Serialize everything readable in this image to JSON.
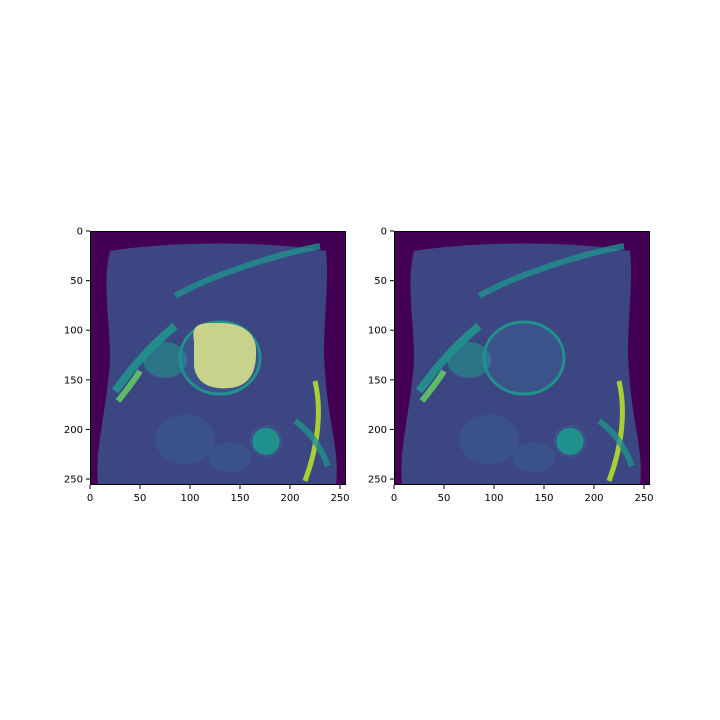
{
  "figure": {
    "panels": [
      {
        "id": "left",
        "overlay": true
      },
      {
        "id": "right",
        "overlay": false
      }
    ],
    "x_ticks": [
      "0",
      "50",
      "100",
      "150",
      "200",
      "250"
    ],
    "y_ticks": [
      "0",
      "50",
      "100",
      "150",
      "200",
      "250"
    ],
    "x_tick_values": [
      0,
      50,
      100,
      150,
      200,
      250
    ],
    "y_tick_values": [
      0,
      50,
      100,
      150,
      200,
      250
    ],
    "image_extent": [
      256,
      256
    ],
    "colormap": "viridis",
    "colors": {
      "background": "#440154",
      "tissue_dark": "#3b528b",
      "tissue_mid": "#21918c",
      "tissue_bright": "#5ec962",
      "highlight": "#b5de2b",
      "overlay_mask": "#d9e08a"
    }
  }
}
